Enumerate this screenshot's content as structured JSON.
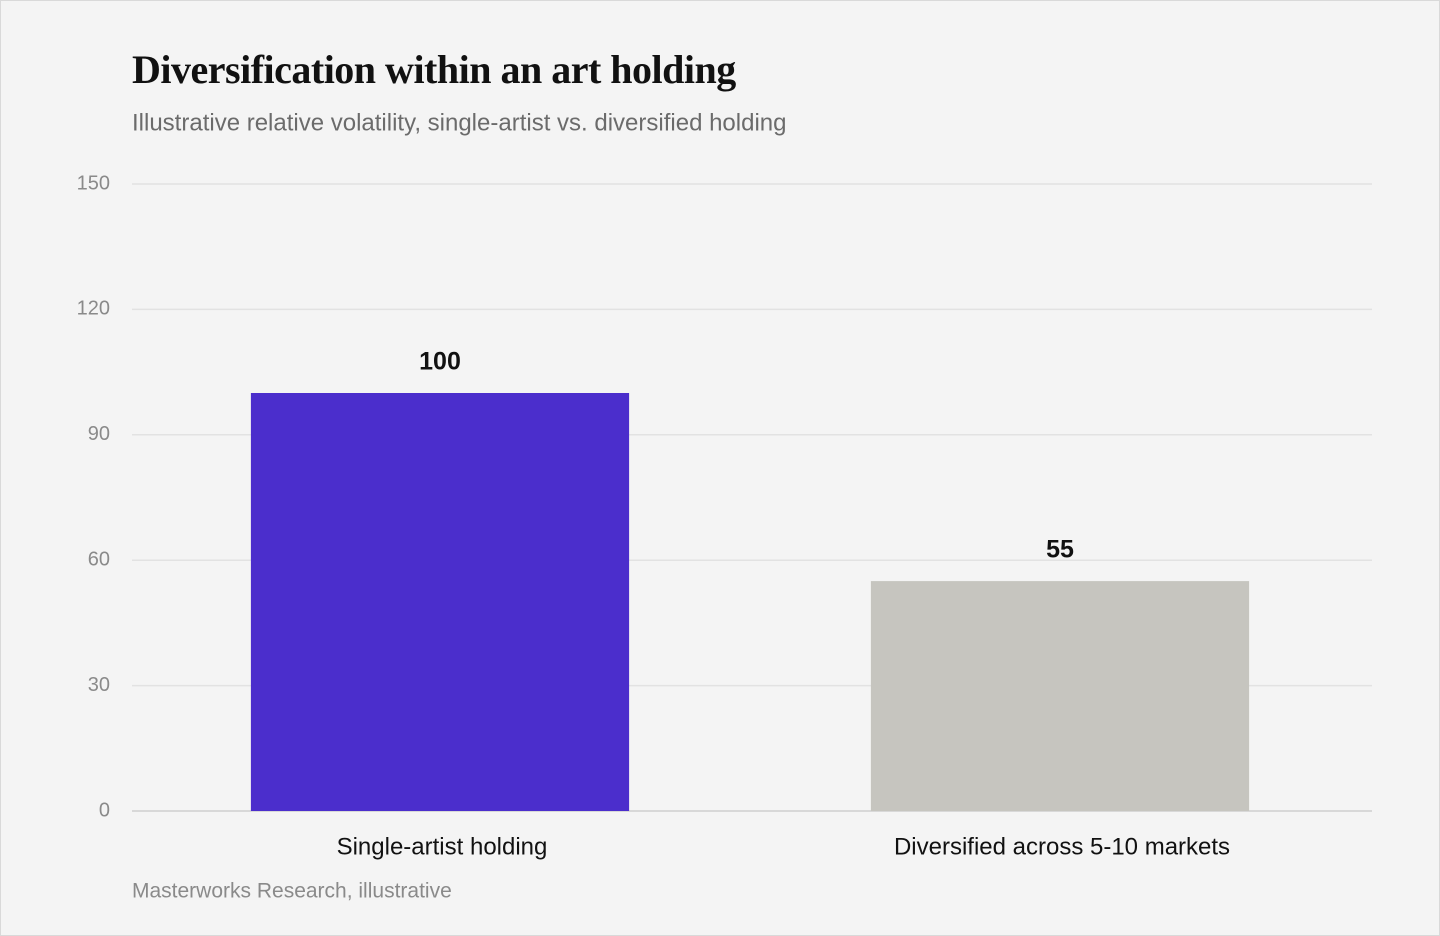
{
  "chart_data": {
    "type": "bar",
    "title": "Diversification within an art holding",
    "subtitle": "Illustrative relative volatility, single-artist vs. diversified holding",
    "categories": [
      "Single-artist holding",
      "Diversified across 5-10 markets"
    ],
    "values": [
      100,
      55
    ],
    "colors": [
      "#4b2ecc",
      "#c6c5bf"
    ],
    "ylim": [
      0,
      150
    ],
    "yticks": [
      0,
      30,
      60,
      90,
      120,
      150
    ],
    "grid": true,
    "source": "Masterworks Research, illustrative"
  }
}
